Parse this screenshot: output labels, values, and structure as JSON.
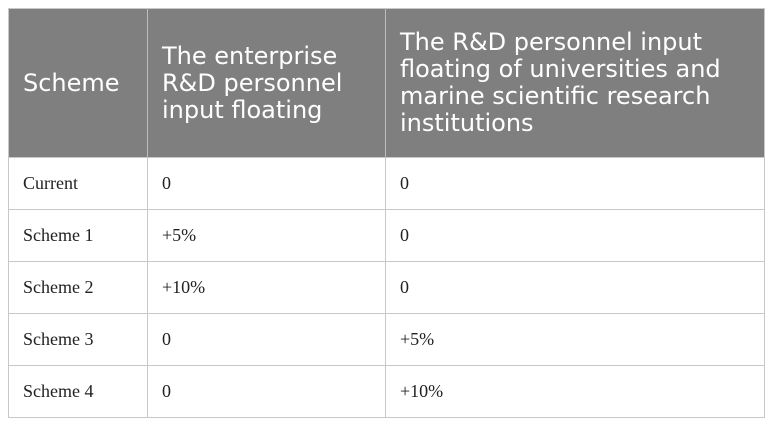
{
  "table": {
    "headers": [
      "Scheme",
      "The enterprise R&D personnel input floating",
      "The R&D personnel input floating of universities and marine scientific research institutions"
    ],
    "rows": [
      [
        "Current",
        "0",
        "0"
      ],
      [
        "Scheme 1",
        "+5%",
        "0"
      ],
      [
        "Scheme 2",
        "+10%",
        "0"
      ],
      [
        "Scheme 3",
        "0",
        "+5%"
      ],
      [
        "Scheme 4",
        "0",
        "+10%"
      ]
    ]
  }
}
